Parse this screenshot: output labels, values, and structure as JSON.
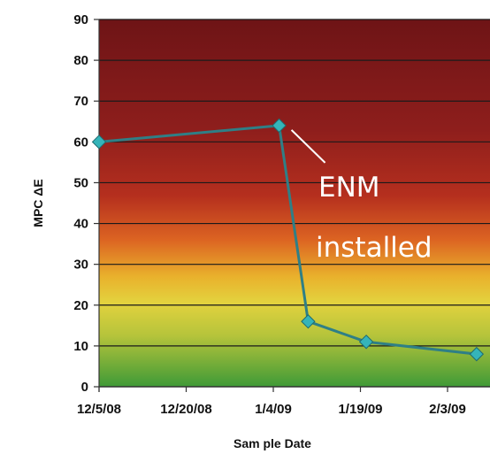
{
  "chart_data": {
    "type": "line",
    "title": "",
    "xlabel": "Sam ple Date",
    "ylabel": "MPC ΔE",
    "x_tick_labels": [
      "12/5/08",
      "12/20/08",
      "1/4/09",
      "1/19/09",
      "2/3/09"
    ],
    "x_tick_dates": [
      "2008-12-05",
      "2008-12-20",
      "2009-01-04",
      "2009-01-19",
      "2009-02-03"
    ],
    "y_ticks": [
      0,
      10,
      20,
      30,
      40,
      50,
      60,
      70,
      80,
      90
    ],
    "ylim": [
      0,
      90
    ],
    "grid": "horizontal",
    "background": "gradient green (low) to yellow to orange to dark red (high)",
    "series": [
      {
        "color": "#2f7f86",
        "marker_color": "#35b4b9",
        "points": [
          {
            "x": "2008-12-05",
            "y": 60
          },
          {
            "x": "2009-01-05",
            "y": 64
          },
          {
            "x": "2009-01-10",
            "y": 16
          },
          {
            "x": "2009-01-20",
            "y": 11
          },
          {
            "x": "2009-02-08",
            "y": 8
          }
        ]
      }
    ],
    "annotations": [
      {
        "text": "ENM",
        "anchor_date": "2009-01-05",
        "anchor_value": 64
      },
      {
        "text": "installed"
      }
    ]
  }
}
